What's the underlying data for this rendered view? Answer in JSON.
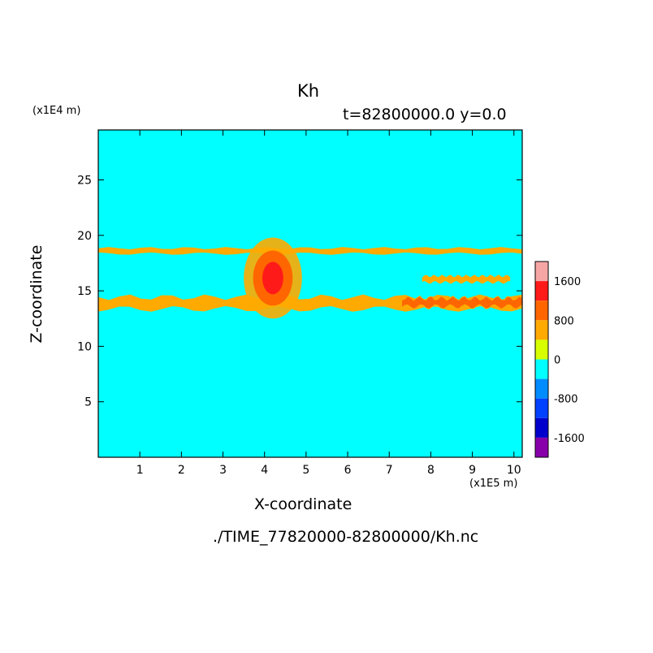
{
  "chart_data": {
    "type": "heatmap",
    "title": "Kh",
    "subtitle": "t=82800000.0 y=0.0",
    "xlabel": "X-coordinate",
    "ylabel": "Z-coordinate",
    "x_unit": "(x1E5 m)",
    "y_unit": "(x1E4 m)",
    "xlim": [
      0,
      10.2
    ],
    "ylim": [
      0,
      29.5
    ],
    "x_ticks": [
      "1",
      "2",
      "3",
      "4",
      "5",
      "6",
      "7",
      "8",
      "9",
      "10"
    ],
    "y_ticks": [
      "5",
      "10",
      "15",
      "20",
      "25"
    ],
    "background_value": 0,
    "colorbar": {
      "tick_labels": [
        "1600",
        "800",
        "0",
        "-800",
        "-1600"
      ],
      "levels": [
        {
          "color": "#f7a6a6"
        },
        {
          "color": "#ff1a1a"
        },
        {
          "color": "#ff6600"
        },
        {
          "color": "#ffaa00"
        },
        {
          "color": "#d8ff00"
        },
        {
          "color": "#00ffff"
        },
        {
          "color": "#008cff"
        },
        {
          "color": "#0040ff"
        },
        {
          "color": "#0000cc"
        },
        {
          "color": "#8800aa"
        }
      ]
    },
    "features": [
      {
        "kind": "band",
        "x": [
          0.0,
          10.2
        ],
        "z": [
          13.2,
          14.6
        ],
        "value": 800
      },
      {
        "kind": "band",
        "x": [
          7.3,
          10.2
        ],
        "z": [
          13.4,
          14.5
        ],
        "value": 1000
      },
      {
        "kind": "band",
        "x": [
          7.8,
          9.9
        ],
        "z": [
          15.7,
          16.4
        ],
        "value": 800
      },
      {
        "kind": "band",
        "x": [
          0.0,
          10.2
        ],
        "z": [
          18.3,
          18.9
        ],
        "value": 800
      },
      {
        "kind": "plume",
        "x": [
          3.5,
          4.9
        ],
        "z": [
          12.5,
          19.8
        ],
        "value": 1600
      }
    ]
  },
  "source_file": "./TIME_77820000-82800000/Kh.nc"
}
